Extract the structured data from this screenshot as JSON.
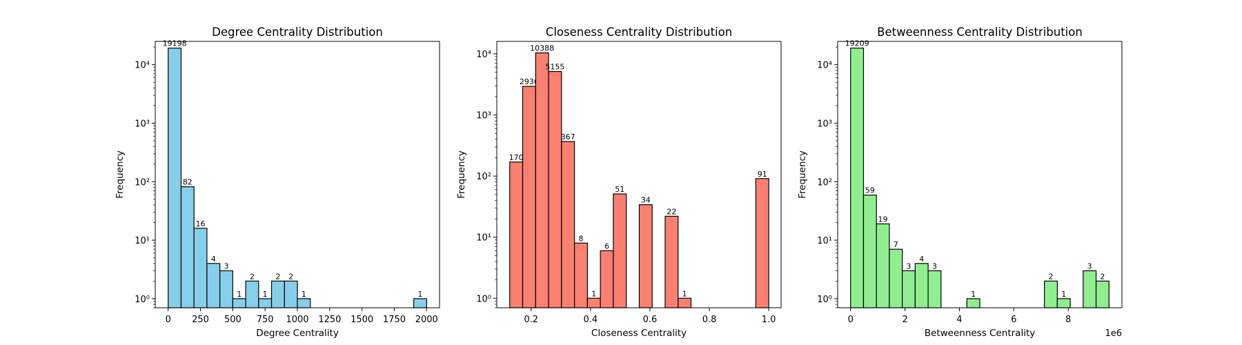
{
  "chart_data": [
    {
      "type": "bar",
      "title": "Degree Centrality Distribution",
      "xlabel": "Degree Centrality",
      "ylabel": "Frequency",
      "yscale": "log",
      "ylim": [
        0.7,
        25000
      ],
      "xlim": [
        -100,
        2100
      ],
      "color": "#87ceeb",
      "x_ticks": [
        0,
        250,
        500,
        750,
        1000,
        1250,
        1500,
        1750,
        2000
      ],
      "x_tick_labels": [
        "0",
        "250",
        "500",
        "750",
        "1000",
        "1250",
        "1500",
        "1750",
        "2000"
      ],
      "x_offset_label": "",
      "y_ticks": [
        1,
        10,
        100,
        1000,
        10000
      ],
      "bin_start": 0,
      "bin_width": 100,
      "values": [
        19198,
        82,
        16,
        4,
        3,
        1,
        2,
        1,
        2,
        2,
        1,
        0,
        0,
        0,
        0,
        0,
        0,
        0,
        0,
        1
      ]
    },
    {
      "type": "bar",
      "title": "Closeness Centrality Distribution",
      "xlabel": "Closeness Centrality",
      "ylabel": "Frequency",
      "yscale": "log",
      "ylim": [
        0.7,
        16000
      ],
      "xlim": [
        0.0845,
        1.0415
      ],
      "color": "#fa8072",
      "x_ticks": [
        0.2,
        0.4,
        0.6,
        0.8,
        1.0
      ],
      "x_tick_labels": [
        "0.2",
        "0.4",
        "0.6",
        "0.8",
        "1.0"
      ],
      "x_offset_label": "",
      "y_ticks": [
        1,
        10,
        100,
        1000,
        10000
      ],
      "bin_start": 0.128,
      "bin_width": 0.0436,
      "values": [
        170,
        2936,
        10388,
        5155,
        367,
        8,
        1,
        6,
        51,
        0,
        34,
        0,
        22,
        1,
        0,
        0,
        0,
        0,
        0,
        91
      ]
    },
    {
      "type": "bar",
      "title": "Betweenness Centrality Distribution",
      "xlabel": "Betweenness Centrality",
      "ylabel": "Frequency",
      "yscale": "log",
      "ylim": [
        0.7,
        25000
      ],
      "xlim": [
        -0.475,
        9.975
      ],
      "color": "#90ee90",
      "x_ticks": [
        0,
        2,
        4,
        6,
        8
      ],
      "x_tick_labels": [
        "0",
        "2",
        "4",
        "6",
        "8"
      ],
      "x_offset_label": "1e6",
      "y_ticks": [
        1,
        10,
        100,
        1000,
        10000
      ],
      "bin_start": 0,
      "bin_width": 0.475,
      "values": [
        19209,
        59,
        19,
        7,
        3,
        4,
        3,
        0,
        0,
        1,
        0,
        0,
        0,
        0,
        0,
        2,
        1,
        0,
        3,
        2
      ]
    }
  ]
}
